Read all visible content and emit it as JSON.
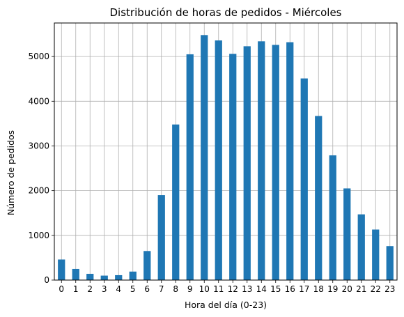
{
  "chart_data": {
    "type": "bar",
    "title": "Distribución de horas de pedidos - Miércoles",
    "xlabel": "Hora del día (0-23)",
    "ylabel": "Número de pedidos",
    "categories": [
      "0",
      "1",
      "2",
      "3",
      "4",
      "5",
      "6",
      "7",
      "8",
      "9",
      "10",
      "11",
      "12",
      "13",
      "14",
      "15",
      "16",
      "17",
      "18",
      "19",
      "20",
      "21",
      "22",
      "23"
    ],
    "values": [
      460,
      250,
      140,
      100,
      110,
      190,
      650,
      1900,
      3480,
      5050,
      5480,
      5360,
      5060,
      5230,
      5340,
      5260,
      5320,
      4510,
      3670,
      2790,
      2050,
      1470,
      1130,
      760
    ],
    "ylim": [
      0,
      5750
    ],
    "yticks": [
      0,
      1000,
      2000,
      3000,
      4000,
      5000
    ],
    "grid": true,
    "bar_color": "#1f77b4"
  }
}
